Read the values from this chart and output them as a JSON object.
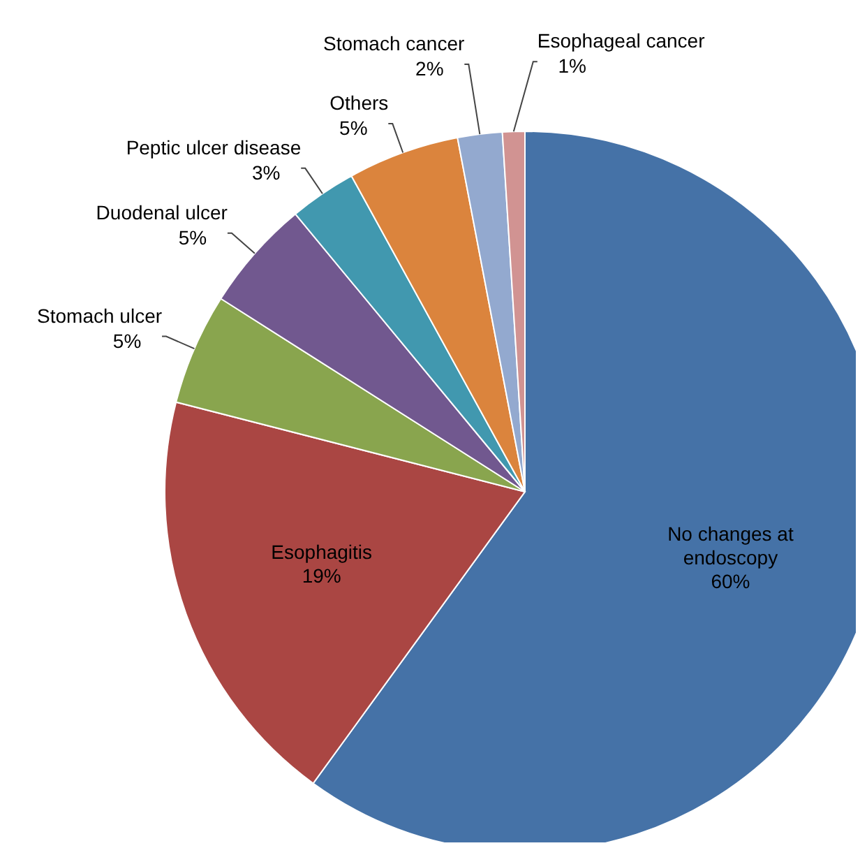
{
  "chart_data": {
    "type": "pie",
    "categories": [
      "No changes at endoscopy",
      "Esophagitis",
      "Stomach ulcer",
      "Duodenal ulcer",
      "Peptic ulcer disease",
      "Others",
      "Stomach cancer",
      "Esophageal cancer"
    ],
    "values": [
      60,
      19,
      5,
      5,
      3,
      5,
      2,
      1
    ],
    "value_labels": [
      "60%",
      "19%",
      "5%",
      "5%",
      "3%",
      "5%",
      "2%",
      "1%"
    ],
    "colors": [
      "#4572a7",
      "#aa4643",
      "#89a54e",
      "#71588f",
      "#4198af",
      "#db843d",
      "#93a9cf",
      "#d19392"
    ],
    "legend": false
  }
}
